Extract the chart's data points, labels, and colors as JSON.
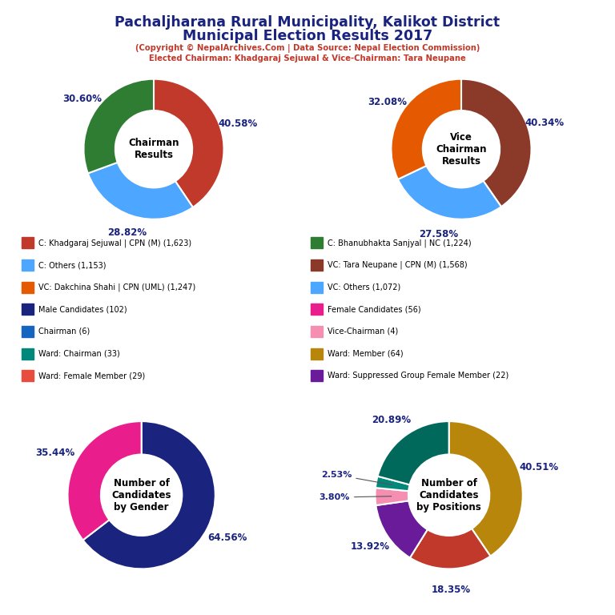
{
  "title_line1": "Pachaljharana Rural Municipality, Kalikot District",
  "title_line2": "Municipal Election Results 2017",
  "subtitle1": "(Copyright © NepalArchives.Com | Data Source: Nepal Election Commission)",
  "subtitle2": "Elected Chairman: Khadgaraj Sejuwal & Vice-Chairman: Tara Neupane",
  "chairman": {
    "label": "Chairman\nResults",
    "values": [
      40.58,
      28.82,
      30.6
    ],
    "colors": [
      "#c0392b",
      "#4da6ff",
      "#2e7d32"
    ],
    "pct_labels": [
      "40.58%",
      "28.82%",
      "30.60%"
    ]
  },
  "vice_chairman": {
    "label": "Vice\nChairman\nResults",
    "values": [
      40.34,
      27.58,
      32.08
    ],
    "colors": [
      "#8b3a2a",
      "#4da6ff",
      "#e55a00"
    ],
    "pct_labels": [
      "40.34%",
      "27.58%",
      "32.08%"
    ]
  },
  "gender": {
    "label": "Number of\nCandidates\nby Gender",
    "values": [
      64.56,
      35.44
    ],
    "colors": [
      "#1a237e",
      "#e91e8c"
    ],
    "pct_labels": [
      "64.56%",
      "35.44%"
    ]
  },
  "positions": {
    "label": "Number of\nCandidates\nby Positions",
    "values": [
      40.51,
      18.35,
      13.92,
      3.8,
      2.53,
      20.89
    ],
    "colors": [
      "#b8860b",
      "#c0392b",
      "#6a1b9a",
      "#f48fb1",
      "#00897b",
      "#00695c"
    ],
    "pct_labels": [
      "40.51%",
      "18.35%",
      "13.92%",
      "3.80%",
      "2.53%",
      "20.89%"
    ]
  },
  "legend_items_left": [
    {
      "label": "C: Khadgaraj Sejuwal | CPN (M) (1,623)",
      "color": "#c0392b"
    },
    {
      "label": "C: Others (1,153)",
      "color": "#4da6ff"
    },
    {
      "label": "VC: Dakchina Shahi | CPN (UML) (1,247)",
      "color": "#e55a00"
    },
    {
      "label": "Male Candidates (102)",
      "color": "#1a237e"
    },
    {
      "label": "Chairman (6)",
      "color": "#1565c0"
    },
    {
      "label": "Ward: Chairman (33)",
      "color": "#00897b"
    },
    {
      "label": "Ward: Female Member (29)",
      "color": "#e74c3c"
    }
  ],
  "legend_items_right": [
    {
      "label": "C: Bhanubhakta Sanjyal | NC (1,224)",
      "color": "#2e7d32"
    },
    {
      "label": "VC: Tara Neupane | CPN (M) (1,568)",
      "color": "#8b3a2a"
    },
    {
      "label": "VC: Others (1,072)",
      "color": "#4da6ff"
    },
    {
      "label": "Female Candidates (56)",
      "color": "#e91e8c"
    },
    {
      "label": "Vice-Chairman (4)",
      "color": "#f48fb1"
    },
    {
      "label": "Ward: Member (64)",
      "color": "#b8860b"
    },
    {
      "label": "Ward: Suppressed Group Female Member (22)",
      "color": "#6a1b9a"
    }
  ],
  "title_color": "#1a237e",
  "subtitle_color": "#c0392b",
  "pct_color": "#1a237e",
  "bg_color": "#ffffff"
}
